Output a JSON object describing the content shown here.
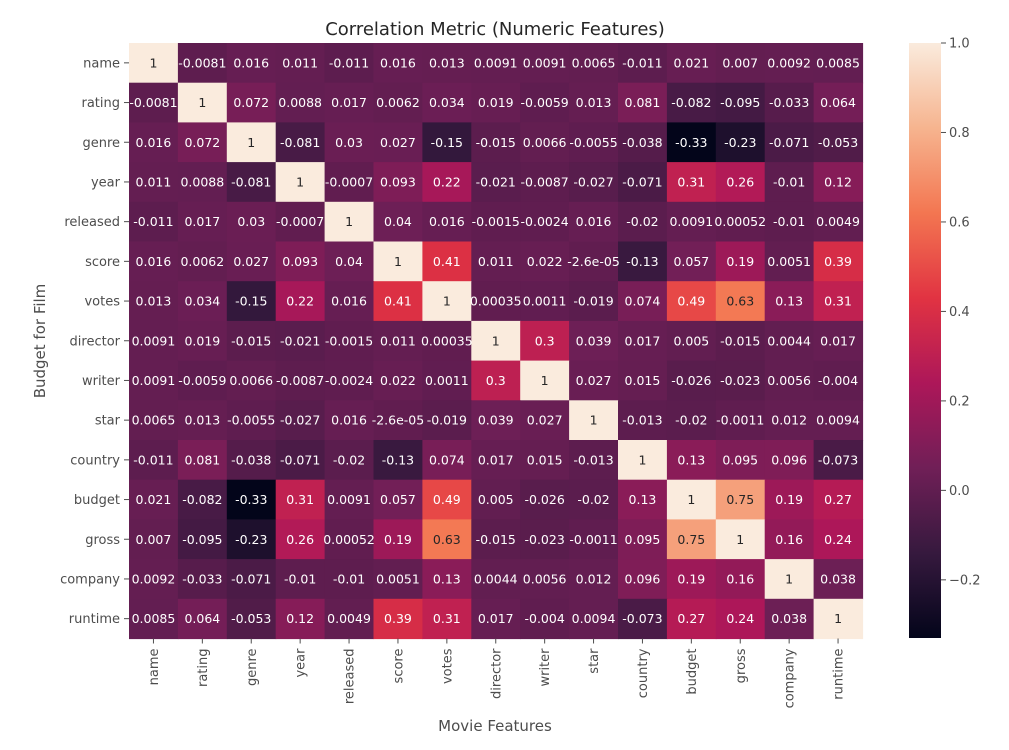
{
  "chart_data": {
    "type": "heatmap",
    "title": "Correlation Metric (Numeric Features)",
    "xlabel": "Movie Features",
    "ylabel": "Budget for Film",
    "x_categories": [
      "name",
      "rating",
      "genre",
      "year",
      "released",
      "score",
      "votes",
      "director",
      "writer",
      "star",
      "country",
      "budget",
      "gross",
      "company",
      "runtime"
    ],
    "y_categories": [
      "name",
      "rating",
      "genre",
      "year",
      "released",
      "score",
      "votes",
      "director",
      "writer",
      "star",
      "country",
      "budget",
      "gross",
      "company",
      "runtime"
    ],
    "values": [
      [
        1,
        -0.0081,
        0.016,
        0.011,
        -0.011,
        0.016,
        0.013,
        0.0091,
        0.0091,
        0.0065,
        -0.011,
        0.021,
        0.007,
        0.0092,
        0.0085
      ],
      [
        -0.0081,
        1,
        0.072,
        0.0088,
        0.017,
        0.0062,
        0.034,
        0.019,
        -0.0059,
        0.013,
        0.081,
        -0.082,
        -0.095,
        -0.033,
        0.064
      ],
      [
        0.016,
        0.072,
        1,
        -0.081,
        0.03,
        0.027,
        -0.15,
        -0.015,
        0.0066,
        -0.0055,
        -0.038,
        -0.33,
        -0.23,
        -0.071,
        -0.053
      ],
      [
        0.011,
        0.0088,
        -0.081,
        1,
        -0.0007,
        0.093,
        0.22,
        -0.021,
        -0.0087,
        -0.027,
        -0.071,
        0.31,
        0.26,
        -0.01,
        0.12
      ],
      [
        -0.011,
        0.017,
        0.03,
        -0.0007,
        1,
        0.04,
        0.016,
        -0.0015,
        -0.0024,
        0.016,
        -0.02,
        0.0091,
        0.00052,
        -0.01,
        0.0049
      ],
      [
        0.016,
        0.0062,
        0.027,
        0.093,
        0.04,
        1,
        0.41,
        0.011,
        0.022,
        -2.6e-05,
        -0.13,
        0.057,
        0.19,
        0.0051,
        0.39
      ],
      [
        0.013,
        0.034,
        -0.15,
        0.22,
        0.016,
        0.41,
        1,
        0.00035,
        0.0011,
        -0.019,
        0.074,
        0.49,
        0.63,
        0.13,
        0.31
      ],
      [
        0.0091,
        0.019,
        -0.015,
        -0.021,
        -0.0015,
        0.011,
        0.00035,
        1,
        0.3,
        0.039,
        0.017,
        0.005,
        -0.015,
        0.0044,
        0.017
      ],
      [
        0.0091,
        -0.0059,
        0.0066,
        -0.0087,
        -0.0024,
        0.022,
        0.0011,
        0.3,
        1,
        0.027,
        0.015,
        -0.026,
        -0.023,
        0.0056,
        -0.004
      ],
      [
        0.0065,
        0.013,
        -0.0055,
        -0.027,
        0.016,
        -2.6e-05,
        -0.019,
        0.039,
        0.027,
        1,
        -0.013,
        -0.02,
        -0.0011,
        0.012,
        0.0094
      ],
      [
        -0.011,
        0.081,
        -0.038,
        -0.071,
        -0.02,
        -0.13,
        0.074,
        0.017,
        0.015,
        -0.013,
        1,
        0.13,
        0.095,
        0.096,
        -0.073
      ],
      [
        0.021,
        -0.082,
        -0.33,
        0.31,
        0.0091,
        0.057,
        0.49,
        0.005,
        -0.026,
        -0.02,
        0.13,
        1,
        0.75,
        0.19,
        0.27
      ],
      [
        0.007,
        -0.095,
        -0.23,
        0.26,
        0.00052,
        0.19,
        0.63,
        -0.015,
        -0.023,
        -0.0011,
        0.095,
        0.75,
        1,
        0.16,
        0.24
      ],
      [
        0.0092,
        -0.033,
        -0.071,
        -0.01,
        -0.01,
        0.0051,
        0.13,
        0.0044,
        0.0056,
        0.012,
        0.096,
        0.19,
        0.16,
        1,
        0.038
      ],
      [
        0.0085,
        0.064,
        -0.053,
        0.12,
        0.0049,
        0.39,
        0.31,
        0.017,
        -0.004,
        0.0094,
        -0.073,
        0.27,
        0.24,
        0.038,
        1
      ]
    ],
    "cell_labels": [
      [
        "1",
        "-0.0081",
        "0.016",
        "0.011",
        "-0.011",
        "0.016",
        "0.013",
        "0.0091",
        "0.0091",
        "0.0065",
        "-0.011",
        "0.021",
        "0.007",
        "0.0092",
        "0.0085"
      ],
      [
        "-0.0081",
        "1",
        "0.072",
        "0.0088",
        "0.017",
        "0.0062",
        "0.034",
        "0.019",
        "-0.0059",
        "0.013",
        "0.081",
        "-0.082",
        "-0.095",
        "-0.033",
        "0.064"
      ],
      [
        "0.016",
        "0.072",
        "1",
        "-0.081",
        "0.03",
        "0.027",
        "-0.15",
        "-0.015",
        "0.0066",
        "-0.0055",
        "-0.038",
        "-0.33",
        "-0.23",
        "-0.071",
        "-0.053"
      ],
      [
        "0.011",
        "0.0088",
        "-0.081",
        "1",
        "-0.0007",
        "0.093",
        "0.22",
        "-0.021",
        "-0.0087",
        "-0.027",
        "-0.071",
        "0.31",
        "0.26",
        "-0.01",
        "0.12"
      ],
      [
        "-0.011",
        "0.017",
        "0.03",
        "-0.0007",
        "1",
        "0.04",
        "0.016",
        "-0.0015",
        "-0.0024",
        "0.016",
        "-0.02",
        "0.0091",
        "0.00052",
        "-0.01",
        "0.0049"
      ],
      [
        "0.016",
        "0.0062",
        "0.027",
        "0.093",
        "0.04",
        "1",
        "0.41",
        "0.011",
        "0.022",
        "-2.6e-05",
        "-0.13",
        "0.057",
        "0.19",
        "0.0051",
        "0.39"
      ],
      [
        "0.013",
        "0.034",
        "-0.15",
        "0.22",
        "0.016",
        "0.41",
        "1",
        "0.00035",
        "0.0011",
        "-0.019",
        "0.074",
        "0.49",
        "0.63",
        "0.13",
        "0.31"
      ],
      [
        "0.0091",
        "0.019",
        "-0.015",
        "-0.021",
        "-0.0015",
        "0.011",
        "0.00035",
        "1",
        "0.3",
        "0.039",
        "0.017",
        "0.005",
        "-0.015",
        "0.0044",
        "0.017"
      ],
      [
        "0.0091",
        "-0.0059",
        "0.0066",
        "-0.0087",
        "-0.0024",
        "0.022",
        "0.0011",
        "0.3",
        "1",
        "0.027",
        "0.015",
        "-0.026",
        "-0.023",
        "0.0056",
        "-0.004"
      ],
      [
        "0.0065",
        "0.013",
        "-0.0055",
        "-0.027",
        "0.016",
        "-2.6e-05",
        "-0.019",
        "0.039",
        "0.027",
        "1",
        "-0.013",
        "-0.02",
        "-0.0011",
        "0.012",
        "0.0094"
      ],
      [
        "-0.011",
        "0.081",
        "-0.038",
        "-0.071",
        "-0.02",
        "-0.13",
        "0.074",
        "0.017",
        "0.015",
        "-0.013",
        "1",
        "0.13",
        "0.095",
        "0.096",
        "-0.073"
      ],
      [
        "0.021",
        "-0.082",
        "-0.33",
        "0.31",
        "0.0091",
        "0.057",
        "0.49",
        "0.005",
        "-0.026",
        "-0.02",
        "0.13",
        "1",
        "0.75",
        "0.19",
        "0.27"
      ],
      [
        "0.007",
        "-0.095",
        "-0.23",
        "0.26",
        "0.00052",
        "0.19",
        "0.63",
        "-0.015",
        "-0.023",
        "-0.0011",
        "0.095",
        "0.75",
        "1",
        "0.16",
        "0.24"
      ],
      [
        "0.0092",
        "-0.033",
        "-0.071",
        "-0.01",
        "-0.01",
        "0.0051",
        "0.13",
        "0.0044",
        "0.0056",
        "0.012",
        "0.096",
        "0.19",
        "0.16",
        "1",
        "0.038"
      ],
      [
        "0.0085",
        "0.064",
        "-0.053",
        "0.12",
        "0.0049",
        "0.39",
        "0.31",
        "0.017",
        "-0.004",
        "0.0094",
        "-0.073",
        "0.27",
        "0.24",
        "0.038",
        "1"
      ]
    ],
    "colorbar": {
      "range": [
        -0.33,
        1.0
      ],
      "ticks": [
        1.0,
        0.8,
        0.6,
        0.4,
        0.2,
        0.0,
        -0.2
      ],
      "tick_labels": [
        "1.0",
        "0.8",
        "0.6",
        "0.4",
        "0.2",
        "0.0",
        "−0.2"
      ],
      "colormap": "rocket",
      "stops": [
        "#03051a",
        "#36193e",
        "#701f57",
        "#ad1759",
        "#e13342",
        "#f37651",
        "#f6b48f",
        "#faebdd"
      ]
    }
  }
}
